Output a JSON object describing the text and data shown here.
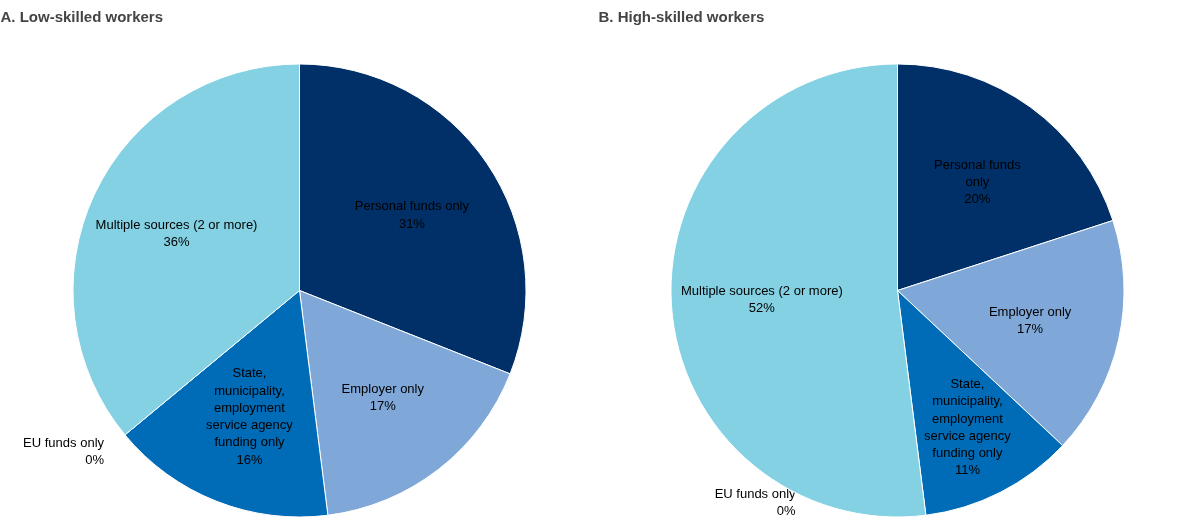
{
  "chart_data": [
    {
      "type": "pie",
      "title": "A. Low-skilled workers",
      "categories": [
        "Personal funds only",
        "Employer only",
        "State, municipality, employment service agency funding only",
        "EU funds only",
        "Multiple sources (2 or more)"
      ],
      "values": [
        31,
        17,
        16,
        0,
        36
      ],
      "value_labels": [
        "31%",
        "17%",
        "16%",
        "0%",
        "36%"
      ],
      "colors": [
        "#003067",
        "#7fa8d8",
        "#006bb6",
        "#4f81bd",
        "#83d1e3"
      ]
    },
    {
      "type": "pie",
      "title": "B. High-skilled workers",
      "categories": [
        "Personal funds only",
        "Employer only",
        "State, municipality, employment service agency funding only",
        "EU funds only",
        "Multiple sources (2 or more)"
      ],
      "values": [
        20,
        17,
        11,
        0,
        52
      ],
      "value_labels": [
        "20%",
        "17%",
        "11%",
        "0%",
        "52%"
      ],
      "colors": [
        "#003067",
        "#7fa8d8",
        "#006bb6",
        "#4f81bd",
        "#83d1e3"
      ]
    }
  ]
}
